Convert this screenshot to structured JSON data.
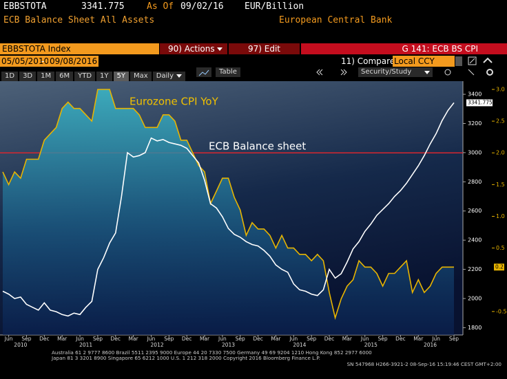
{
  "header": {
    "ticker": "EBBSTOTA",
    "last": "3341.775",
    "as_of_label": "As Of",
    "as_of": "09/02/16",
    "units": "EUR/Billion",
    "description": "ECB Balance Sheet All Assets",
    "source": "European Central Bank"
  },
  "toolbar": {
    "security": "EBBSTOTA Index",
    "actions": "90) Actions",
    "edit": "97) Edit",
    "page_title": "G 141: ECB BS CPI",
    "start_date": "05/05/2010",
    "date_separator": "-",
    "end_date": "09/08/2016",
    "compare_label": "11) Compare",
    "compare_value": "Local CCY",
    "ranges": [
      "1D",
      "3D",
      "1M",
      "6M",
      "YTD",
      "1Y",
      "5Y",
      "Max"
    ],
    "active_range": "5Y",
    "frequency": "Daily",
    "table": "Table",
    "security_study": "Security/Study"
  },
  "footer": {
    "lines": [
      "Australia 61 2 9777 8600 Brazil 5511 2395 9000 Europe 44 20 7330 7500 Germany 49 69 9204 1210 Hong Kong 852 2977 6000",
      "Japan 81 3 3201 8900        Singapore 65 6212 1000        U.S. 1 212 318 2000        Copyright 2016 Bloomberg Finance L.P."
    ],
    "sn": "SN 547968 H266-3921-2 08-Sep-16 15:19:46 CEST GMT+2:00"
  },
  "chart_data": {
    "type": "line",
    "x": [
      "2010-05",
      "2010-06",
      "2010-07",
      "2010-08",
      "2010-09",
      "2010-10",
      "2010-11",
      "2010-12",
      "2011-01",
      "2011-02",
      "2011-03",
      "2011-04",
      "2011-05",
      "2011-06",
      "2011-07",
      "2011-08",
      "2011-09",
      "2011-10",
      "2011-11",
      "2011-12",
      "2012-01",
      "2012-02",
      "2012-03",
      "2012-04",
      "2012-05",
      "2012-06",
      "2012-07",
      "2012-08",
      "2012-09",
      "2012-10",
      "2012-11",
      "2012-12",
      "2013-01",
      "2013-02",
      "2013-03",
      "2013-04",
      "2013-05",
      "2013-06",
      "2013-07",
      "2013-08",
      "2013-09",
      "2013-10",
      "2013-11",
      "2013-12",
      "2014-01",
      "2014-02",
      "2014-03",
      "2014-04",
      "2014-05",
      "2014-06",
      "2014-07",
      "2014-08",
      "2014-09",
      "2014-10",
      "2014-11",
      "2014-12",
      "2015-01",
      "2015-02",
      "2015-03",
      "2015-04",
      "2015-05",
      "2015-06",
      "2015-07",
      "2015-08",
      "2015-09",
      "2015-10",
      "2015-11",
      "2015-12",
      "2016-01",
      "2016-02",
      "2016-03",
      "2016-04",
      "2016-05",
      "2016-06",
      "2016-07",
      "2016-08",
      "2016-09"
    ],
    "xlim": [
      "2010-05",
      "2016-09"
    ],
    "xticks": [
      {
        "value": "2010-06",
        "label": "Jun"
      },
      {
        "value": "2010-09",
        "label": "Sep"
      },
      {
        "value": "2010-12",
        "label": "Dec"
      },
      {
        "value": "2011-03",
        "label": "Mar"
      },
      {
        "value": "2011-06",
        "label": "Jun"
      },
      {
        "value": "2011-09",
        "label": "Sep"
      },
      {
        "value": "2011-12",
        "label": "Dec"
      },
      {
        "value": "2012-03",
        "label": "Mar"
      },
      {
        "value": "2012-06",
        "label": "Jun"
      },
      {
        "value": "2012-09",
        "label": "Sep"
      },
      {
        "value": "2012-12",
        "label": "Dec"
      },
      {
        "value": "2013-03",
        "label": "Mar"
      },
      {
        "value": "2013-06",
        "label": "Jun"
      },
      {
        "value": "2013-09",
        "label": "Sep"
      },
      {
        "value": "2013-12",
        "label": "Dec"
      },
      {
        "value": "2014-03",
        "label": "Mar"
      },
      {
        "value": "2014-06",
        "label": "Jun"
      },
      {
        "value": "2014-09",
        "label": "Sep"
      },
      {
        "value": "2014-12",
        "label": "Dec"
      },
      {
        "value": "2015-03",
        "label": "Mar"
      },
      {
        "value": "2015-06",
        "label": "Jun"
      },
      {
        "value": "2015-09",
        "label": "Sep"
      },
      {
        "value": "2015-12",
        "label": "Dec"
      },
      {
        "value": "2016-03",
        "label": "Mar"
      },
      {
        "value": "2016-06",
        "label": "Jun"
      },
      {
        "value": "2016-09",
        "label": "Sep"
      }
    ],
    "x_year_labels": [
      {
        "value": "2010-08",
        "label": "2010"
      },
      {
        "value": "2011-07",
        "label": "2011"
      },
      {
        "value": "2012-07",
        "label": "2012"
      },
      {
        "value": "2013-07",
        "label": "2013"
      },
      {
        "value": "2014-07",
        "label": "2014"
      },
      {
        "value": "2015-07",
        "label": "2015"
      },
      {
        "value": "2016-05",
        "label": "2016"
      }
    ],
    "ylim": [
      1750,
      3490
    ],
    "yticks": [
      1800,
      2000,
      2200,
      2400,
      2600,
      2800,
      3000,
      3200,
      3400
    ],
    "y2lim": [
      -0.87,
      3.13
    ],
    "y2ticks": [
      {
        "value": 3,
        "label": "3.0"
      },
      2.5,
      {
        "value": 2,
        "label": "2.0"
      },
      1.5,
      {
        "value": 1,
        "label": "1.0"
      },
      0.5,
      -0.5
    ],
    "y2color": "#e8b400",
    "reference_line": {
      "axis": "y2",
      "value": 2,
      "color": "#d9262e"
    },
    "series": [
      {
        "name": "Eurozone CPI YoY",
        "color": "#e8b400",
        "axis": "y2",
        "fill": true,
        "last_label": "0.2",
        "values": [
          1.7,
          1.5,
          1.7,
          1.6,
          1.9,
          1.9,
          1.9,
          2.2,
          2.3,
          2.4,
          2.7,
          2.8,
          2.7,
          2.7,
          2.6,
          2.5,
          3.0,
          3.0,
          3.0,
          2.7,
          2.7,
          2.7,
          2.7,
          2.6,
          2.4,
          2.4,
          2.4,
          2.6,
          2.6,
          2.5,
          2.2,
          2.2,
          2.0,
          1.8,
          1.7,
          1.2,
          1.4,
          1.6,
          1.6,
          1.3,
          1.1,
          0.7,
          0.9,
          0.8,
          0.8,
          0.7,
          0.5,
          0.7,
          0.5,
          0.5,
          0.4,
          0.4,
          0.3,
          0.4,
          0.3,
          -0.2,
          -0.6,
          -0.3,
          -0.1,
          0.0,
          0.3,
          0.2,
          0.2,
          0.1,
          -0.1,
          0.1,
          0.1,
          0.2,
          0.3,
          -0.2,
          0.0,
          -0.2,
          -0.1,
          0.1,
          0.2,
          0.2,
          0.2
        ]
      },
      {
        "name": "ECB Balance sheet",
        "color": "#ffffff",
        "axis": "y",
        "fill": false,
        "last_label": "3341.775",
        "values": [
          2050,
          2030,
          2000,
          2010,
          1960,
          1940,
          1920,
          1970,
          1920,
          1910,
          1890,
          1880,
          1900,
          1890,
          1940,
          1980,
          2200,
          2280,
          2380,
          2450,
          2700,
          3000,
          2970,
          2980,
          3000,
          3100,
          3080,
          3090,
          3070,
          3060,
          3050,
          3030,
          2980,
          2930,
          2810,
          2650,
          2620,
          2560,
          2480,
          2440,
          2420,
          2390,
          2370,
          2360,
          2330,
          2290,
          2230,
          2200,
          2180,
          2100,
          2060,
          2050,
          2030,
          2020,
          2060,
          2200,
          2140,
          2170,
          2250,
          2340,
          2390,
          2460,
          2510,
          2570,
          2610,
          2650,
          2700,
          2740,
          2790,
          2850,
          2910,
          2980,
          3060,
          3130,
          3220,
          3290,
          3341.775
        ]
      }
    ]
  }
}
